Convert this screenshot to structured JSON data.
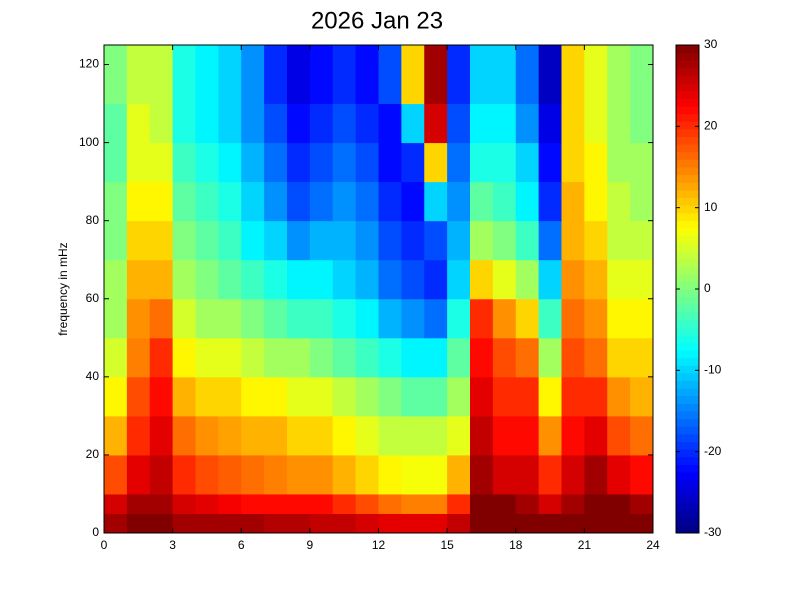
{
  "chart_data": {
    "type": "heatmap",
    "title": "2026 Jan 23",
    "ylabel": "frequency in mHz",
    "colormap": "jet",
    "x_edges": [
      0,
      1,
      2,
      3,
      4,
      5,
      6,
      7,
      8,
      9,
      10,
      11,
      12,
      13,
      14,
      15,
      16,
      17,
      18,
      19,
      20,
      21,
      22,
      23,
      24
    ],
    "y_edges": [
      0,
      5,
      10,
      20,
      30,
      40,
      50,
      60,
      70,
      80,
      90,
      100,
      110,
      125
    ],
    "xlim": [
      0,
      24
    ],
    "xticks": [
      0,
      3,
      6,
      9,
      12,
      15,
      18,
      21,
      24
    ],
    "ylim": [
      0,
      125
    ],
    "yticks": [
      0,
      20,
      40,
      60,
      80,
      100,
      120
    ],
    "clim": [
      -30,
      30
    ],
    "cticks": [
      -30,
      -20,
      -10,
      0,
      10,
      20,
      30
    ],
    "z": [
      [
        28,
        30,
        30,
        28,
        28,
        28,
        28,
        27,
        27,
        26,
        26,
        25,
        24,
        24,
        24,
        26,
        30,
        30,
        30,
        30,
        30,
        30,
        30,
        30
      ],
      [
        25,
        28,
        28,
        25,
        24,
        23,
        22,
        22,
        22,
        22,
        20,
        18,
        16,
        15,
        15,
        20,
        30,
        30,
        28,
        25,
        28,
        30,
        30,
        28
      ],
      [
        18,
        24,
        26,
        20,
        18,
        17,
        16,
        15,
        14,
        14,
        12,
        10,
        8,
        7,
        7,
        12,
        28,
        25,
        25,
        20,
        25,
        28,
        24,
        22
      ],
      [
        12,
        20,
        24,
        16,
        14,
        13,
        12,
        12,
        10,
        10,
        8,
        6,
        4,
        4,
        4,
        6,
        26,
        22,
        22,
        14,
        22,
        24,
        18,
        16
      ],
      [
        8,
        18,
        22,
        12,
        10,
        10,
        8,
        8,
        6,
        6,
        4,
        2,
        0,
        -2,
        -2,
        2,
        24,
        20,
        20,
        8,
        20,
        20,
        14,
        12
      ],
      [
        5,
        15,
        20,
        8,
        6,
        6,
        4,
        2,
        2,
        0,
        -2,
        -4,
        -6,
        -8,
        -8,
        -2,
        22,
        18,
        16,
        2,
        18,
        16,
        10,
        10
      ],
      [
        2,
        14,
        16,
        5,
        2,
        2,
        0,
        -2,
        -4,
        -4,
        -6,
        -8,
        -12,
        -14,
        -16,
        -6,
        20,
        14,
        10,
        -4,
        16,
        14,
        8,
        8
      ],
      [
        2,
        12,
        12,
        2,
        0,
        -2,
        -4,
        -6,
        -8,
        -8,
        -10,
        -12,
        -16,
        -18,
        -20,
        -10,
        10,
        6,
        2,
        -10,
        14,
        12,
        6,
        6
      ],
      [
        0,
        10,
        10,
        0,
        -2,
        -4,
        -8,
        -10,
        -14,
        -12,
        -12,
        -14,
        -18,
        -20,
        -18,
        -12,
        2,
        0,
        -4,
        -16,
        12,
        10,
        4,
        4
      ],
      [
        0,
        8,
        8,
        -2,
        -4,
        -6,
        -10,
        -14,
        -18,
        -16,
        -14,
        -16,
        -20,
        -22,
        -10,
        -14,
        -2,
        -4,
        -8,
        -20,
        12,
        8,
        4,
        2
      ],
      [
        -2,
        6,
        6,
        -4,
        -6,
        -8,
        -12,
        -16,
        -20,
        -18,
        -16,
        -18,
        -22,
        -20,
        10,
        -16,
        -6,
        -6,
        -10,
        -22,
        10,
        8,
        2,
        2
      ],
      [
        -2,
        6,
        4,
        -6,
        -8,
        -10,
        -14,
        -18,
        -22,
        -20,
        -18,
        -20,
        -22,
        -10,
        25,
        -18,
        -8,
        -8,
        -14,
        -24,
        10,
        6,
        2,
        0
      ],
      [
        0,
        4,
        4,
        -6,
        -8,
        -10,
        -14,
        -20,
        -24,
        -22,
        -20,
        -22,
        -18,
        10,
        28,
        -20,
        -10,
        -10,
        -16,
        -26,
        10,
        6,
        2,
        0
      ]
    ]
  }
}
